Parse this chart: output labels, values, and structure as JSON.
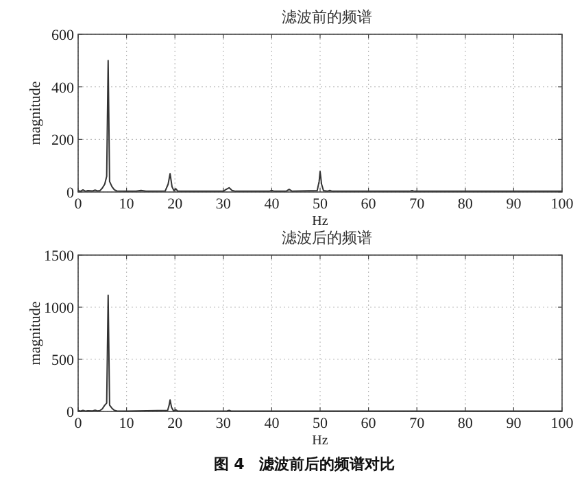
{
  "chart_data": [
    {
      "type": "line",
      "title": "滤波前的频谱",
      "xlabel": "Hz",
      "ylabel": "magnitude",
      "xlim": [
        0,
        100
      ],
      "ylim": [
        0,
        600
      ],
      "xticks": [
        0,
        10,
        20,
        30,
        40,
        50,
        60,
        70,
        80,
        90,
        100
      ],
      "yticks": [
        0,
        200,
        400,
        600
      ],
      "grid": true,
      "series": [
        {
          "color": "#333333",
          "x": [
            0,
            0.5,
            1,
            1.5,
            2,
            3,
            3.5,
            4,
            4.5,
            5,
            5.5,
            5.9,
            6.2,
            6.5,
            7,
            7.5,
            8,
            10,
            12,
            13,
            14,
            18,
            18.6,
            19,
            19.4,
            19.8,
            20.2,
            20.6,
            30,
            30.6,
            31.2,
            31.8,
            32.5,
            39.5,
            40,
            40.5,
            43,
            43.6,
            44.2,
            49.4,
            49.8,
            50,
            50.3,
            50.7,
            51.5,
            52,
            52.5,
            68.5,
            69,
            69.5,
            80,
            100
          ],
          "values": [
            5,
            3,
            8,
            3,
            5,
            4,
            7,
            4,
            5,
            15,
            30,
            60,
            500,
            40,
            20,
            8,
            4,
            3,
            3,
            6,
            3,
            4,
            30,
            70,
            20,
            5,
            12,
            3,
            3,
            10,
            16,
            6,
            3,
            3,
            6,
            3,
            3,
            10,
            3,
            5,
            40,
            78,
            30,
            5,
            3,
            6,
            3,
            3,
            5,
            3,
            3,
            3
          ]
        }
      ]
    },
    {
      "type": "line",
      "title": "滤波后的频谱",
      "xlabel": "Hz",
      "ylabel": "magnitude",
      "xlim": [
        0,
        100
      ],
      "ylim": [
        0,
        1500
      ],
      "xticks": [
        0,
        10,
        20,
        30,
        40,
        50,
        60,
        70,
        80,
        90,
        100
      ],
      "yticks": [
        0,
        500,
        1000,
        1500
      ],
      "grid": true,
      "annotations": [
        "图 4　滤波前后的频谱对比"
      ],
      "series": [
        {
          "color": "#333333",
          "x": [
            0,
            0.5,
            1,
            1.5,
            2,
            3,
            3.5,
            4,
            4.5,
            5,
            5.5,
            5.9,
            6.2,
            6.5,
            7,
            7.5,
            8,
            10,
            18.5,
            18.8,
            19,
            19.3,
            19.7,
            20.2,
            20.6,
            30.8,
            31.2,
            31.6,
            40,
            100
          ],
          "values": [
            8,
            3,
            10,
            4,
            6,
            5,
            12,
            5,
            8,
            25,
            60,
            80,
            1115,
            60,
            30,
            10,
            5,
            3,
            10,
            60,
            110,
            40,
            5,
            15,
            3,
            5,
            10,
            3,
            3,
            3
          ]
        }
      ]
    }
  ]
}
